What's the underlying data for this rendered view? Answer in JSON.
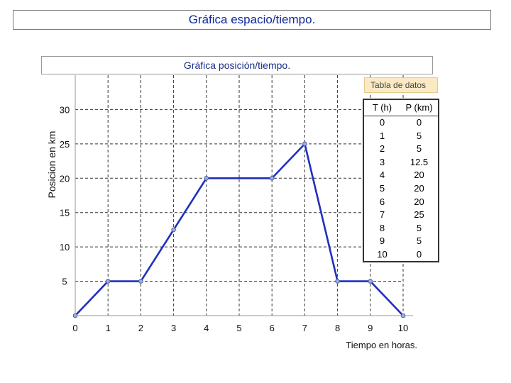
{
  "slide": {
    "title": "Gráfica espacio/tiempo."
  },
  "chart_data": {
    "type": "line",
    "title": "Gráfica posición/tiempo.",
    "xlabel": "Tiempo en horas.",
    "ylabel": "Posicion en km",
    "xlim": [
      0,
      10
    ],
    "ylim": [
      0,
      35
    ],
    "x_ticks": [
      "0",
      "1",
      "2",
      "3",
      "4",
      "5",
      "6",
      "7",
      "8",
      "9",
      "10"
    ],
    "y_ticks": [
      "5",
      "10",
      "15",
      "20",
      "25",
      "30"
    ],
    "grid": true,
    "line_color": "#1f2fbf",
    "series": [
      {
        "x": [
          0,
          1,
          2,
          3,
          4,
          5,
          6,
          7,
          8,
          9,
          10
        ],
        "y": [
          0,
          5,
          5,
          12.5,
          20,
          20,
          20,
          25,
          5,
          5,
          0
        ],
        "marker_x": [
          0,
          1,
          2,
          3,
          4,
          6,
          7,
          8,
          9,
          10
        ]
      }
    ]
  },
  "table": {
    "title": "Tabla de datos",
    "headers": [
      "T (h)",
      "P (km)"
    ],
    "rows": [
      [
        "0",
        "0"
      ],
      [
        "1",
        "5"
      ],
      [
        "2",
        "5"
      ],
      [
        "3",
        "12.5"
      ],
      [
        "4",
        "20"
      ],
      [
        "5",
        "20"
      ],
      [
        "6",
        "20"
      ],
      [
        "7",
        "25"
      ],
      [
        "8",
        "5"
      ],
      [
        "9",
        "5"
      ],
      [
        "10",
        "0"
      ]
    ]
  }
}
